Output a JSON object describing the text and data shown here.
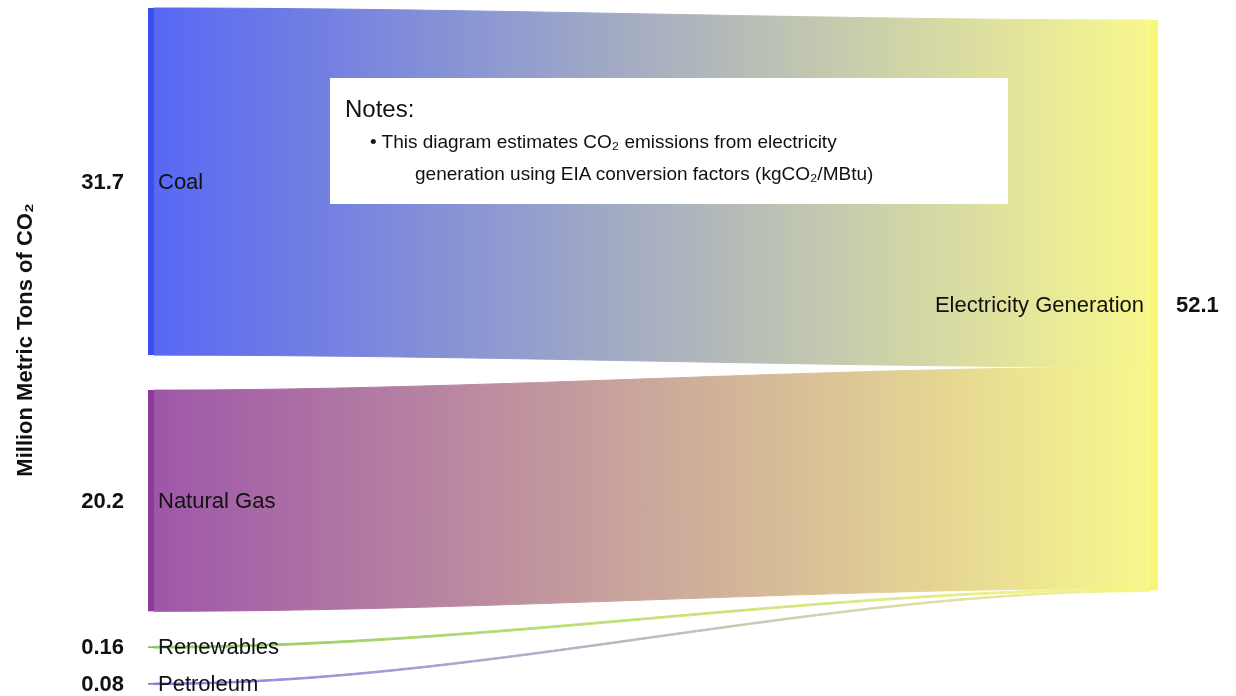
{
  "chart_data": {
    "type": "other",
    "ylabel": "Million Metric Tons of CO₂",
    "categories": [
      "Coal",
      "Natural Gas",
      "Renewables",
      "Petroleum",
      "Electricity Generation"
    ],
    "values": [
      31.7,
      20.2,
      0.16,
      0.08,
      52.1
    ],
    "colors": [
      "#3b4ef2",
      "#8e3a9a",
      "#7cc04a",
      "#6a6ae8",
      "#f7f77a"
    ],
    "data_labels": true,
    "annotations": [
      "Notes:",
      "•   This diagram estimates CO₂ emissions from electricity",
      "generation using EIA conversion factors (kgCO₂/MBtu)"
    ]
  }
}
